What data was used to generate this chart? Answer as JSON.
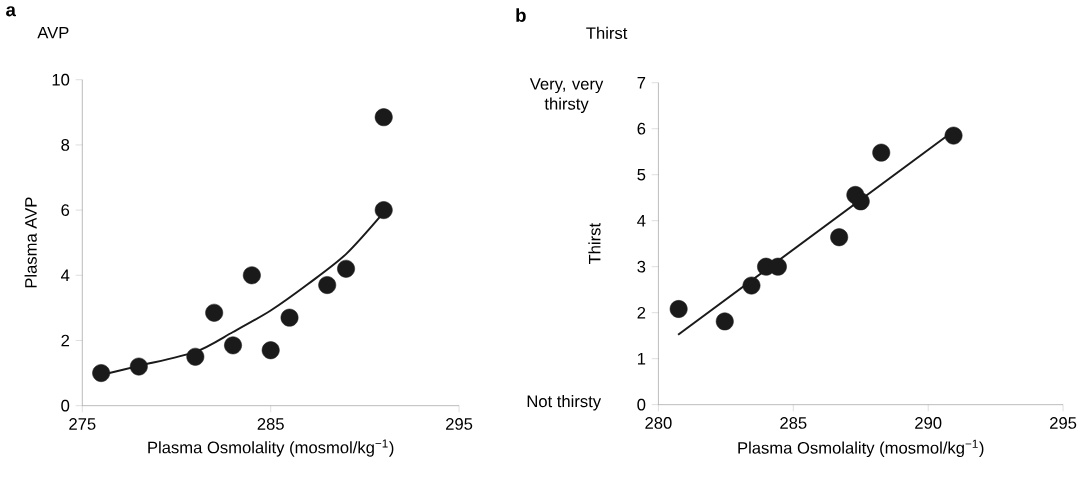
{
  "chart_data": [
    {
      "type": "scatter",
      "title": "AVP",
      "xlabel": "Plasma Osmolality (mosmol/kg$^{−1}$)",
      "ylabel": "Plasma AVP",
      "annotations": [
        "a"
      ],
      "xlim": [
        275,
        295
      ],
      "xticks": [
        275,
        285,
        295
      ],
      "ylim": [
        0,
        10
      ],
      "yticks": [
        0,
        2,
        4,
        6,
        8,
        10
      ],
      "grid": false,
      "series": [
        {
          "marker": "circle",
          "color": "#1a1a1a",
          "x": [
            276,
            278,
            281,
            282,
            283,
            284,
            285,
            286,
            288,
            289,
            291,
            291
          ],
          "values": [
            1.0,
            1.2,
            1.5,
            2.85,
            1.85,
            4.0,
            1.7,
            2.7,
            3.7,
            4.2,
            6.0,
            8.85
          ]
        },
        {
          "type": "line",
          "marker": "none",
          "color": "#1a1a1a",
          "x": [
            276,
            278,
            281,
            283,
            285,
            287,
            289,
            291
          ],
          "values": [
            0.94,
            1.22,
            1.65,
            2.26,
            2.92,
            3.74,
            4.65,
            5.93
          ]
        }
      ]
    },
    {
      "type": "scatter",
      "title": "Thirst",
      "xlabel": "Plasma Osmolality (mosmol/kg$^{−1}$)",
      "ylabel": "Thirst",
      "annotations": [
        "b",
        "Very, very thirsty",
        "Not thirsty"
      ],
      "xlim": [
        280,
        295
      ],
      "xticks": [
        280,
        285,
        290,
        295
      ],
      "ylim": [
        0,
        7
      ],
      "yticks": [
        0,
        1,
        2,
        3,
        4,
        5,
        6,
        7
      ],
      "grid": false,
      "series": [
        {
          "marker": "circle",
          "color": "#1a1a1a",
          "x": [
            280.75,
            282.46,
            283.45,
            283.99,
            284.43,
            286.7,
            287.3,
            287.5,
            288.26,
            290.94
          ],
          "values": [
            2.08,
            1.81,
            2.59,
            3.0,
            3.0,
            3.64,
            4.56,
            4.42,
            5.48,
            5.85
          ]
        },
        {
          "type": "line",
          "marker": "none",
          "color": "#1a1a1a",
          "x": [
            280.73,
            290.78
          ],
          "values": [
            1.52,
            5.88
          ]
        }
      ]
    }
  ]
}
